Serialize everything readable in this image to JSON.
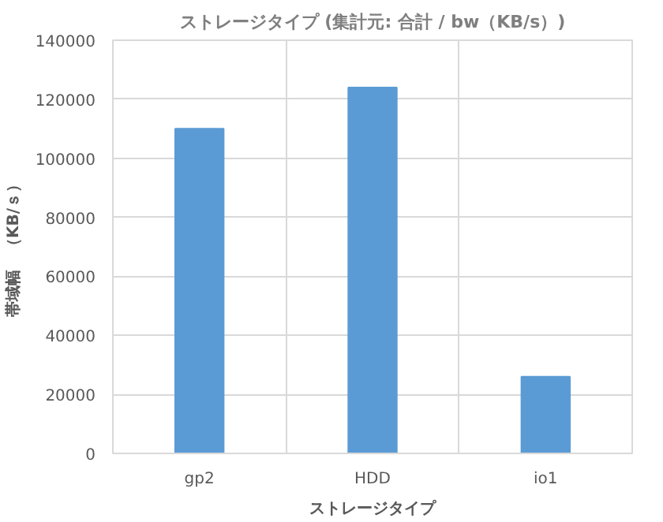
{
  "chart_data": {
    "type": "bar",
    "title": "ストレージタイプ (集計元: 合計 / bw（KB/s）)",
    "xlabel": "ストレージタイプ",
    "ylabel": "帯域幅　（KB/ｓ）",
    "categories": [
      "gp2",
      "HDD",
      "io1"
    ],
    "values": [
      110000,
      124000,
      26000
    ],
    "color": "#5b9bd5",
    "ylim": [
      0,
      140000
    ],
    "yticks": [
      0,
      20000,
      40000,
      60000,
      80000,
      100000,
      120000,
      140000
    ],
    "grid": true
  }
}
